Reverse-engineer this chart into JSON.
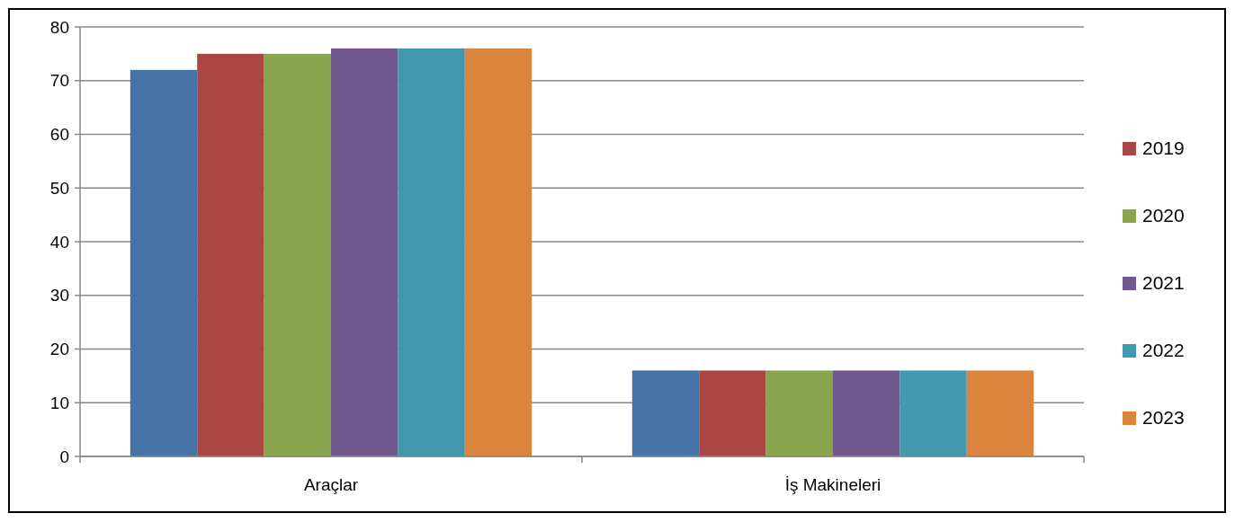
{
  "chart_data": {
    "type": "bar",
    "categories": [
      "Araçlar",
      "İş Makineleri"
    ],
    "series": [
      {
        "color": "#4572a7",
        "values": [
          72,
          16
        ]
      },
      {
        "name": "2019",
        "color": "#aa4643",
        "values": [
          75,
          16
        ]
      },
      {
        "name": "2020",
        "color": "#89a54e",
        "values": [
          75,
          16
        ]
      },
      {
        "name": "2021",
        "color": "#71588f",
        "values": [
          76,
          16
        ]
      },
      {
        "name": "2022",
        "color": "#4198af",
        "values": [
          76,
          16
        ]
      },
      {
        "name": "2023",
        "color": "#db843d",
        "values": [
          76,
          16
        ]
      }
    ],
    "ylim": [
      0,
      80
    ],
    "yticks": [
      0,
      10,
      20,
      30,
      40,
      50,
      60,
      70,
      80
    ],
    "grid": "y",
    "legend": "right"
  }
}
